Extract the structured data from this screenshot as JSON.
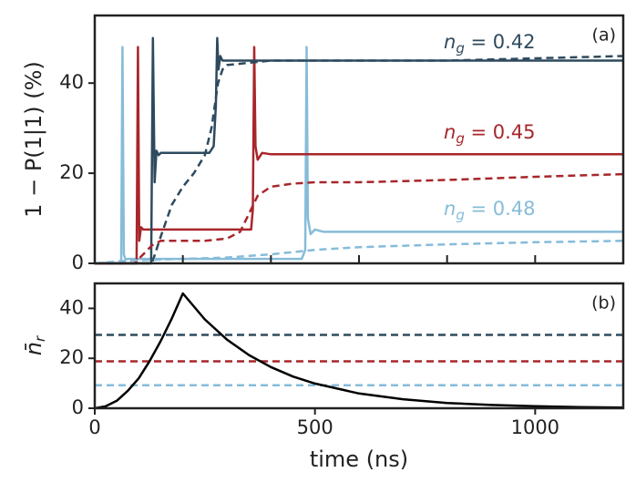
{
  "chart_data": [
    {
      "type": "line",
      "panel_label": "(a)",
      "ylabel": "1 − P(1|1) (%)",
      "xlim": [
        0,
        1200
      ],
      "ylim": [
        0,
        55
      ],
      "yticks": [
        0,
        20,
        40
      ],
      "xminorticks": [
        200,
        400,
        600,
        800,
        1000
      ],
      "series": [
        {
          "color": "#86bcd9",
          "style": "solid",
          "x": [
            0,
            60,
            63,
            66,
            70,
            75,
            100,
            200,
            300,
            400,
            470,
            478,
            481,
            484,
            490,
            500,
            520,
            600,
            800,
            1000,
            1200
          ],
          "values": [
            0,
            0,
            48,
            2,
            0.8,
            1,
            1,
            1,
            1,
            1,
            1,
            3,
            48,
            10,
            6.5,
            7.5,
            7,
            7,
            7,
            7,
            7
          ]
        },
        {
          "color": "#a8262b",
          "style": "solid",
          "x": [
            0,
            95,
            98,
            101,
            105,
            110,
            150,
            200,
            300,
            355,
            359,
            362,
            365,
            370,
            380,
            400,
            600,
            1200
          ],
          "values": [
            0,
            0,
            48,
            5,
            8,
            7.5,
            7.5,
            7.5,
            7.5,
            7.5,
            12,
            48,
            26,
            23,
            24.5,
            24.2,
            24.2,
            24.2
          ]
        },
        {
          "color": "#2e4a5e",
          "style": "solid",
          "x": [
            0,
            128,
            132,
            136,
            140,
            145,
            150,
            200,
            260,
            270,
            275,
            278,
            281,
            285,
            290,
            300,
            400,
            1200
          ],
          "values": [
            0,
            0,
            50,
            18,
            25,
            24,
            24.5,
            24.5,
            24.5,
            26,
            35,
            50,
            43,
            46,
            45,
            45,
            45,
            45
          ]
        },
        {
          "color": "#2e4a5e",
          "style": "dashed",
          "x": [
            0,
            130,
            150,
            175,
            200,
            225,
            250,
            265,
            280,
            290,
            300,
            350,
            400,
            600,
            800,
            1000,
            1200
          ],
          "values": [
            0,
            0,
            6,
            13,
            17,
            20,
            24,
            30,
            40,
            43,
            44,
            44.5,
            45,
            45,
            45,
            45.5,
            46
          ]
        },
        {
          "color": "#a8262b",
          "style": "dashed",
          "x": [
            0,
            90,
            110,
            130,
            150,
            200,
            250,
            300,
            330,
            350,
            370,
            400,
            450,
            500,
            600,
            800,
            1000,
            1200
          ],
          "values": [
            0,
            0,
            2,
            4,
            5,
            5,
            5,
            5.5,
            7,
            11,
            15,
            17,
            17.7,
            18,
            18,
            18.5,
            19.2,
            19.8
          ]
        },
        {
          "color": "#86bcd9",
          "style": "dashed",
          "x": [
            0,
            60,
            100,
            200,
            300,
            400,
            500,
            600,
            800,
            1000,
            1200
          ],
          "values": [
            0,
            0.5,
            0.7,
            1,
            1.3,
            2,
            3,
            3.6,
            4.2,
            4.7,
            5
          ]
        }
      ],
      "annotations": [
        {
          "text": "ng = 0.42",
          "color": "#2e4a5e"
        },
        {
          "text": "ng = 0.45",
          "color": "#a8262b"
        },
        {
          "text": "ng = 0.48",
          "color": "#86bcd9"
        }
      ]
    },
    {
      "type": "line",
      "panel_label": "(b)",
      "ylabel": "n̄r",
      "xlabel": "time (ns)",
      "xlim": [
        0,
        1200
      ],
      "xticks": [
        0,
        500,
        1000
      ],
      "ylim": [
        0,
        50
      ],
      "yticks": [
        0,
        20,
        40
      ],
      "series": [
        {
          "color": "#000000",
          "style": "solid",
          "x": [
            0,
            25,
            50,
            75,
            100,
            125,
            150,
            175,
            200,
            250,
            300,
            350,
            400,
            450,
            500,
            600,
            700,
            800,
            900,
            1000,
            1100,
            1200
          ],
          "values": [
            0,
            0.8,
            3,
            7,
            12,
            19,
            27,
            36,
            46,
            35.6,
            27.5,
            21.3,
            16.5,
            12.7,
            9.9,
            5.9,
            3.6,
            2.1,
            1.3,
            0.8,
            0.47,
            0.3
          ]
        }
      ],
      "hlines": [
        {
          "value": 29.4,
          "color": "#2e4a5e"
        },
        {
          "value": 18.8,
          "color": "#a8262b"
        },
        {
          "value": 9.2,
          "color": "#86bcd9"
        }
      ]
    }
  ]
}
